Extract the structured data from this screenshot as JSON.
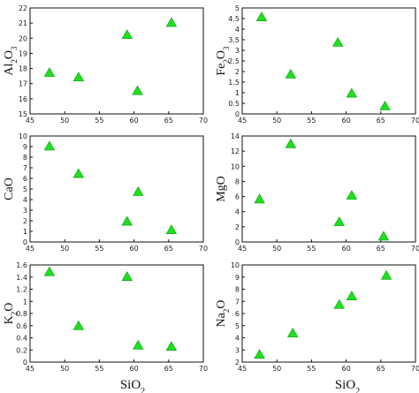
{
  "chart_data": [
    {
      "type": "scatter",
      "ylabel": "Al2O3",
      "ylabel_main": "Al",
      "ylabel_sub1": "2",
      "ylabel_mid": "O",
      "ylabel_sub2": "3",
      "xlim": [
        45,
        70
      ],
      "ylim": [
        15,
        22
      ],
      "xticks": [
        45,
        50,
        55,
        60,
        65,
        70
      ],
      "yticks": [
        15,
        16,
        17,
        18,
        19,
        20,
        21,
        22
      ],
      "points": [
        [
          47.8,
          17.7
        ],
        [
          52.0,
          17.4
        ],
        [
          59.0,
          20.2
        ],
        [
          60.5,
          16.5
        ],
        [
          65.4,
          21.0
        ]
      ],
      "marker_color": "#1fe01f"
    },
    {
      "type": "scatter",
      "ylabel": "Fe2O3",
      "ylabel_main": "Fe",
      "ylabel_sub1": "2",
      "ylabel_mid": "O",
      "ylabel_sub2": "3",
      "xlim": [
        45,
        70
      ],
      "ylim": [
        0,
        5
      ],
      "xticks": [
        45,
        50,
        55,
        60,
        65,
        70
      ],
      "yticks": [
        0,
        0.5,
        1,
        1.5,
        2,
        2.5,
        3,
        3.5,
        4,
        4.5,
        5
      ],
      "points": [
        [
          47.8,
          4.55
        ],
        [
          52.0,
          1.85
        ],
        [
          58.8,
          3.35
        ],
        [
          60.8,
          0.95
        ],
        [
          65.6,
          0.35
        ]
      ],
      "marker_color": "#1fe01f"
    },
    {
      "type": "scatter",
      "ylabel": "CaO",
      "ylabel_main": "CaO",
      "ylabel_sub1": "",
      "ylabel_mid": "",
      "ylabel_sub2": "",
      "xlim": [
        45,
        70
      ],
      "ylim": [
        0,
        10
      ],
      "xticks": [
        45,
        50,
        55,
        60,
        65,
        70
      ],
      "yticks": [
        0,
        1,
        2,
        3,
        4,
        5,
        6,
        7,
        8,
        9,
        10
      ],
      "points": [
        [
          47.8,
          9.0
        ],
        [
          52.0,
          6.4
        ],
        [
          59.0,
          1.9
        ],
        [
          60.6,
          4.7
        ],
        [
          65.4,
          1.1
        ]
      ],
      "marker_color": "#1fe01f"
    },
    {
      "type": "scatter",
      "ylabel": "MgO",
      "ylabel_main": "MgO",
      "ylabel_sub1": "",
      "ylabel_mid": "",
      "ylabel_sub2": "",
      "xlim": [
        45,
        70
      ],
      "ylim": [
        0,
        14
      ],
      "xticks": [
        45,
        50,
        55,
        60,
        65,
        70
      ],
      "yticks": [
        0,
        2,
        4,
        6,
        8,
        10,
        12,
        14
      ],
      "points": [
        [
          47.5,
          5.6
        ],
        [
          52.0,
          12.9
        ],
        [
          59.0,
          2.6
        ],
        [
          60.8,
          6.1
        ],
        [
          65.4,
          0.7
        ]
      ],
      "marker_color": "#1fe01f"
    },
    {
      "type": "scatter",
      "ylabel": "K2O",
      "ylabel_main": "K",
      "ylabel_sub1": "2",
      "ylabel_mid": "O",
      "ylabel_sub2": "",
      "xlim": [
        45,
        70
      ],
      "ylim": [
        0,
        1.6
      ],
      "xticks": [
        45,
        50,
        55,
        60,
        65,
        70
      ],
      "yticks": [
        0,
        0.2,
        0.4,
        0.6,
        0.8,
        1,
        1.2,
        1.4,
        1.6
      ],
      "points": [
        [
          47.8,
          1.48
        ],
        [
          52.0,
          0.59
        ],
        [
          59.0,
          1.4
        ],
        [
          60.6,
          0.27
        ],
        [
          65.4,
          0.25
        ]
      ],
      "xlabel_main": "SiO",
      "xlabel_sub": "2",
      "marker_color": "#1fe01f"
    },
    {
      "type": "scatter",
      "ylabel": "Na2O",
      "ylabel_main": "Na",
      "ylabel_sub1": "2",
      "ylabel_mid": "O",
      "ylabel_sub2": "",
      "xlim": [
        45,
        70
      ],
      "ylim": [
        2,
        10
      ],
      "xticks": [
        45,
        50,
        55,
        60,
        65,
        70
      ],
      "yticks": [
        2,
        3,
        4,
        5,
        6,
        7,
        8,
        9,
        10
      ],
      "points": [
        [
          47.5,
          2.6
        ],
        [
          52.3,
          4.35
        ],
        [
          59.0,
          6.7
        ],
        [
          60.8,
          7.4
        ],
        [
          65.8,
          9.1
        ]
      ],
      "xlabel_main": "SiO",
      "xlabel_sub": "2",
      "marker_color": "#1fe01f"
    }
  ]
}
